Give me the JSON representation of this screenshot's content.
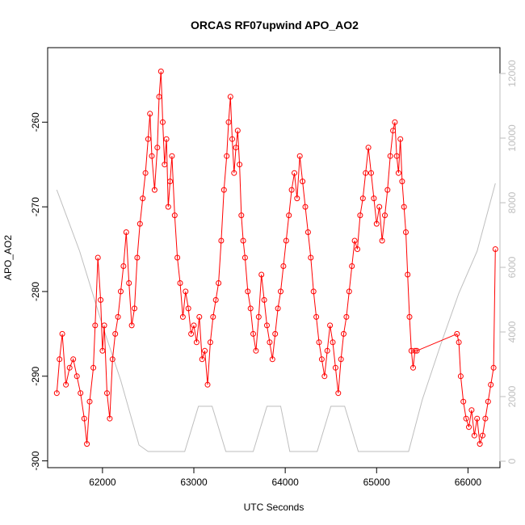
{
  "chart_data": {
    "type": "line",
    "title": "ORCAS RF07upwind APO_AO2",
    "xlabel": "UTC Seconds",
    "ylabel": "APO_AO2",
    "xlim": [
      61400,
      66350
    ],
    "ylim": [
      -300.8,
      -251.2
    ],
    "y2lim": [
      -200,
      12800
    ],
    "x_ticks": [
      62000,
      63000,
      64000,
      65000,
      66000
    ],
    "y_ticks": [
      -300,
      -290,
      -280,
      -270,
      -260
    ],
    "y2_ticks": [
      0,
      2000,
      4000,
      6000,
      8000,
      10000,
      12000
    ],
    "grid": false,
    "legend": "none",
    "series": [
      {
        "axis": "left",
        "color": "#ff0000",
        "marker": "open-circle",
        "x": [
          61500,
          61530,
          61560,
          61600,
          61640,
          61680,
          61720,
          61760,
          61800,
          61830,
          61860,
          61900,
          61920,
          61950,
          61980,
          62000,
          62020,
          62050,
          62080,
          62110,
          62140,
          62170,
          62200,
          62230,
          62260,
          62290,
          62320,
          62350,
          62380,
          62410,
          62440,
          62470,
          62500,
          62520,
          62540,
          62570,
          62600,
          62620,
          62640,
          62660,
          62680,
          62700,
          62720,
          62740,
          62760,
          62790,
          62820,
          62850,
          62880,
          62910,
          62940,
          62970,
          63000,
          63030,
          63060,
          63090,
          63120,
          63150,
          63180,
          63210,
          63240,
          63270,
          63300,
          63330,
          63360,
          63380,
          63400,
          63420,
          63440,
          63460,
          63480,
          63500,
          63520,
          63540,
          63560,
          63590,
          63620,
          63650,
          63680,
          63710,
          63740,
          63770,
          63800,
          63830,
          63860,
          63890,
          63920,
          63950,
          63980,
          64010,
          64040,
          64070,
          64100,
          64130,
          64160,
          64190,
          64220,
          64250,
          64280,
          64310,
          64340,
          64370,
          64400,
          64430,
          64460,
          64490,
          64520,
          64550,
          64580,
          64610,
          64640,
          64670,
          64700,
          64730,
          64760,
          64790,
          64820,
          64850,
          64880,
          64910,
          64940,
          64970,
          65000,
          65030,
          65060,
          65090,
          65120,
          65150,
          65180,
          65200,
          65220,
          65240,
          65260,
          65280,
          65300,
          65320,
          65340,
          65360,
          65380,
          65400,
          65420,
          65440,
          65880,
          65900,
          65920,
          65950,
          65980,
          66010,
          66040,
          66070,
          66100,
          66130,
          66160,
          66190,
          66220,
          66250,
          66280,
          66300
        ],
        "y": [
          -292,
          -288,
          -285,
          -291,
          -289,
          -288,
          -290,
          -292,
          -295,
          -298,
          -293,
          -289,
          -284,
          -276,
          -281,
          -287,
          -284,
          -292,
          -295,
          -288,
          -285,
          -283,
          -280,
          -277,
          -273,
          -279,
          -284,
          -282,
          -276,
          -272,
          -269,
          -266,
          -262,
          -259,
          -264,
          -268,
          -263,
          -257,
          -254,
          -260,
          -265,
          -262,
          -270,
          -267,
          -264,
          -271,
          -276,
          -279,
          -283,
          -280,
          -282,
          -285,
          -284,
          -286,
          -283,
          -288,
          -287,
          -291,
          -286,
          -283,
          -281,
          -279,
          -274,
          -268,
          -264,
          -260,
          -257,
          -262,
          -266,
          -263,
          -261,
          -265,
          -271,
          -274,
          -276,
          -280,
          -282,
          -285,
          -287,
          -283,
          -278,
          -281,
          -284,
          -286,
          -288,
          -285,
          -282,
          -280,
          -277,
          -274,
          -271,
          -268,
          -266,
          -269,
          -264,
          -267,
          -270,
          -273,
          -276,
          -280,
          -283,
          -286,
          -288,
          -290,
          -287,
          -284,
          -286,
          -289,
          -292,
          -288,
          -285,
          -283,
          -280,
          -277,
          -274,
          -275,
          -271,
          -269,
          -266,
          -263,
          -266,
          -269,
          -272,
          -270,
          -274,
          -271,
          -268,
          -264,
          -261,
          -260,
          -264,
          -266,
          -262,
          -267,
          -270,
          -273,
          -278,
          -283,
          -287,
          -289,
          -287,
          -287,
          -285,
          -286,
          -290,
          -293,
          -295,
          -296,
          -294,
          -297,
          -295,
          -298,
          -297,
          -295,
          -293,
          -291,
          -289,
          -275
        ]
      },
      {
        "axis": "right",
        "color": "#bebebe",
        "marker": "none",
        "x": [
          61500,
          61750,
          62000,
          62200,
          62400,
          62500,
          62550,
          62700,
          62900,
          63050,
          63100,
          63200,
          63350,
          63500,
          63650,
          63800,
          63850,
          63950,
          64050,
          64150,
          64350,
          64500,
          64550,
          64650,
          64800,
          64900,
          65000,
          65200,
          65350,
          65500,
          65700,
          65900,
          66100,
          66300
        ],
        "y": [
          8400,
          6500,
          4200,
          2500,
          500,
          300,
          300,
          300,
          300,
          1700,
          1700,
          1700,
          300,
          300,
          300,
          1700,
          1700,
          1700,
          300,
          300,
          300,
          1700,
          1700,
          1700,
          300,
          300,
          300,
          300,
          300,
          1900,
          3600,
          5200,
          6500,
          8600
        ]
      }
    ]
  }
}
